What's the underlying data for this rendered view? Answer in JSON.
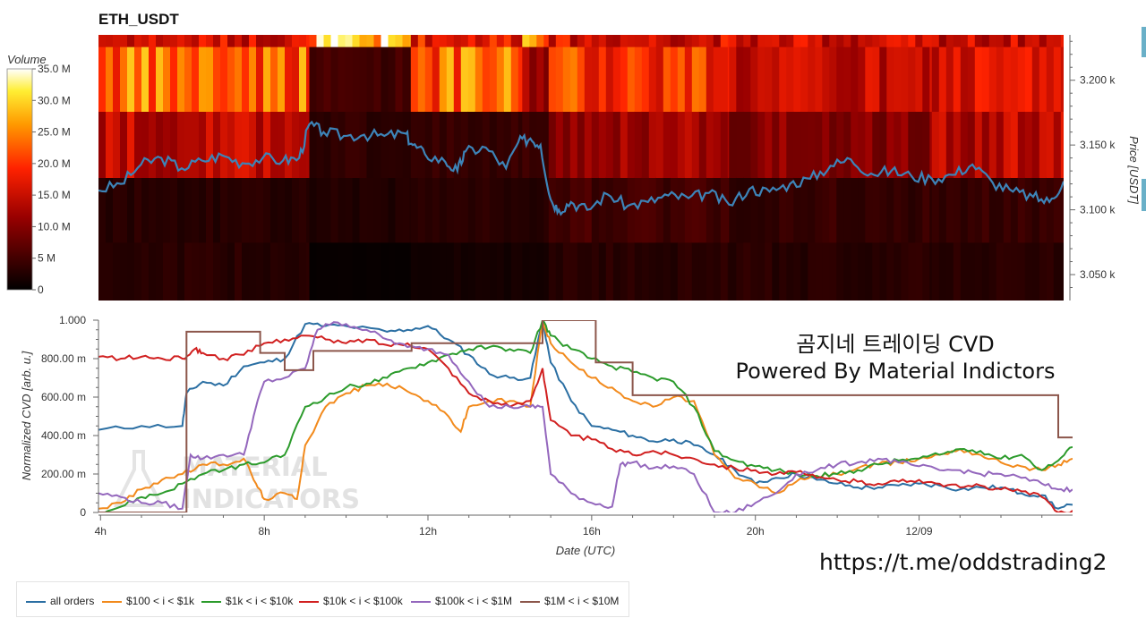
{
  "title": "ETH_USDT",
  "overlay_text": [
    "곰지네 트레이딩 CVD",
    "Powered By Material Indictors"
  ],
  "watermark": [
    "MATERIAL",
    "INDICATORS"
  ],
  "link": "https://t.me/oddstrading2",
  "colors": {
    "all orders": "#2b6fa3",
    "$100 < i < $1k": "#f28a1c",
    "$1k < i < $10k": "#2c9b2c",
    "$10k < i < $100k": "#d12020",
    "$100k < i < $1M": "#9467bd",
    "$1M < i < $10M": "#8c564b"
  },
  "chart_data": [
    {
      "type": "heatmap",
      "title": "ETH_USDT",
      "colorbar": {
        "label": "Volume",
        "ticks": [
          "0",
          "5 M",
          "10.0 M",
          "15.0 M",
          "20.0 M",
          "25.0 M",
          "30.0 M",
          "35.0 M"
        ],
        "range": [
          0,
          35
        ]
      },
      "y_axis": {
        "label": "Price [USDT]",
        "ticks": [
          3050,
          3100,
          3150,
          3200
        ],
        "tick_labels": [
          "3.050 k",
          "3.100 k",
          "3.150 k",
          "3.200 k"
        ],
        "range": [
          3030,
          3235
        ]
      },
      "price_bands": [
        3030,
        3075,
        3125,
        3176,
        3226,
        3235
      ],
      "x_range_hours": [
        3.95,
        27.75
      ],
      "time_blocks": [
        {
          "from": 3.95,
          "to": 9.15,
          "volumes": [
            3,
            3,
            14,
            23,
            16,
            2
          ]
        },
        {
          "from": 9.15,
          "to": 11.65,
          "volumes": [
            0.5,
            2.5,
            3.5,
            5,
            28,
            2
          ]
        },
        {
          "from": 11.65,
          "to": 14.4,
          "volumes": [
            1.5,
            3,
            4,
            23,
            18,
            2
          ]
        },
        {
          "from": 14.4,
          "to": 15.05,
          "volumes": [
            1.5,
            3,
            4,
            12,
            28,
            3
          ]
        },
        {
          "from": 15.05,
          "to": 19.5,
          "volumes": [
            3,
            5,
            12,
            20,
            16,
            2
          ]
        },
        {
          "from": 19.5,
          "to": 24.5,
          "volumes": [
            3,
            4,
            10,
            14,
            15,
            2
          ]
        },
        {
          "from": 24.5,
          "to": 27.75,
          "volumes": [
            3,
            4,
            14,
            16,
            15,
            2
          ]
        }
      ],
      "series": [
        {
          "name": "price",
          "x": [
            3.95,
            4.5,
            5,
            5.5,
            6,
            6.5,
            7,
            7.5,
            8,
            8.5,
            8.9,
            9.15,
            9.5,
            10,
            10.5,
            11,
            11.5,
            11.7,
            12,
            12.5,
            12.8,
            13,
            13.5,
            14,
            14.3,
            14.6,
            14.85,
            15.1,
            15.3,
            15.6,
            16,
            16.5,
            17,
            17.5,
            18,
            18.5,
            19,
            19.5,
            20,
            20.5,
            21,
            21.5,
            22,
            22.5,
            23,
            23.5,
            24,
            24.5,
            25,
            25.5,
            26,
            26.5,
            27,
            27.4,
            27.75
          ],
          "y": [
            3115,
            3120,
            3135,
            3140,
            3132,
            3138,
            3142,
            3136,
            3140,
            3138,
            3140,
            3166,
            3160,
            3157,
            3158,
            3157,
            3159,
            3150,
            3143,
            3137,
            3130,
            3145,
            3148,
            3132,
            3152,
            3155,
            3150,
            3108,
            3100,
            3106,
            3100,
            3112,
            3103,
            3106,
            3111,
            3109,
            3113,
            3104,
            3116,
            3114,
            3120,
            3124,
            3134,
            3139,
            3128,
            3130,
            3126,
            3124,
            3127,
            3135,
            3121,
            3114,
            3110,
            3106,
            3122
          ]
        }
      ]
    },
    {
      "type": "line",
      "title": "",
      "xlabel": "Date (UTC)",
      "ylabel": "Normalized CVD [arb. u.]",
      "ylim": [
        0,
        1
      ],
      "xlim": [
        3.95,
        27.75
      ],
      "x_tick_labels": [
        {
          "at": 4,
          "label": "4h"
        },
        {
          "at": 8,
          "label": "8h"
        },
        {
          "at": 12,
          "label": "12h"
        },
        {
          "at": 16,
          "label": "16h"
        },
        {
          "at": 20,
          "label": "20h"
        },
        {
          "at": 24,
          "label": "12/09"
        }
      ],
      "y_tick_labels": [
        {
          "at": 0,
          "label": "0"
        },
        {
          "at": 0.2,
          "label": "200.00 m"
        },
        {
          "at": 0.4,
          "label": "400.00 m"
        },
        {
          "at": 0.6,
          "label": "600.00 m"
        },
        {
          "at": 0.8,
          "label": "800.00 m"
        },
        {
          "at": 1,
          "label": "1.000"
        }
      ],
      "series": [
        {
          "name": "all orders",
          "x": [
            3.95,
            5,
            6,
            6.1,
            6.5,
            7,
            7.5,
            8,
            8.5,
            9,
            9.5,
            10,
            11,
            11.5,
            12,
            12.5,
            13,
            13.5,
            14,
            14.5,
            14.8,
            15,
            15.5,
            16,
            16.5,
            17,
            17.5,
            18,
            18.5,
            19,
            19.5,
            20,
            20.5,
            21,
            21.5,
            22,
            22.5,
            23,
            23.5,
            24,
            24.5,
            25,
            25.5,
            26,
            26.5,
            27,
            27.4,
            27.75
          ],
          "y": [
            0.43,
            0.45,
            0.45,
            0.62,
            0.68,
            0.66,
            0.76,
            0.78,
            0.8,
            0.98,
            0.97,
            0.97,
            0.94,
            0.95,
            0.97,
            0.9,
            0.82,
            0.72,
            0.7,
            0.7,
            1.0,
            0.78,
            0.58,
            0.45,
            0.43,
            0.4,
            0.37,
            0.38,
            0.35,
            0.3,
            0.22,
            0.15,
            0.18,
            0.2,
            0.17,
            0.15,
            0.13,
            0.13,
            0.14,
            0.15,
            0.14,
            0.12,
            0.13,
            0.13,
            0.1,
            0.09,
            0.02,
            0.04
          ]
        },
        {
          "name": "$100 < i < $1k",
          "x": [
            3.95,
            4.5,
            5,
            5.5,
            6,
            6.5,
            7,
            7.5,
            7.8,
            8,
            8.5,
            8.8,
            9,
            9.5,
            10,
            10.5,
            11,
            11.5,
            12,
            12.5,
            12.8,
            13,
            13.5,
            14,
            14.5,
            14.8,
            15,
            15.5,
            16,
            16.5,
            17,
            17.5,
            18,
            18.5,
            19,
            19.5,
            20,
            20.5,
            21,
            21.5,
            22,
            22.5,
            23,
            23.5,
            24,
            24.5,
            25,
            25.5,
            26,
            26.5,
            27,
            27.4,
            27.75
          ],
          "y": [
            0.02,
            0.05,
            0.12,
            0.17,
            0.2,
            0.25,
            0.25,
            0.28,
            0.15,
            0.07,
            0.1,
            0.07,
            0.35,
            0.55,
            0.62,
            0.66,
            0.67,
            0.63,
            0.58,
            0.5,
            0.42,
            0.55,
            0.58,
            0.58,
            0.55,
            1.0,
            0.88,
            0.78,
            0.7,
            0.65,
            0.58,
            0.55,
            0.6,
            0.58,
            0.3,
            0.18,
            0.15,
            0.1,
            0.16,
            0.19,
            0.2,
            0.23,
            0.25,
            0.26,
            0.28,
            0.3,
            0.33,
            0.3,
            0.26,
            0.24,
            0.22,
            0.25,
            0.28
          ]
        },
        {
          "name": "$1k < i < $10k",
          "x": [
            3.95,
            4.5,
            5,
            5.5,
            6,
            6.5,
            7,
            7.5,
            8,
            8.5,
            9,
            9.5,
            10,
            10.5,
            11,
            11.5,
            12,
            12.5,
            13,
            13.5,
            14,
            14.5,
            14.8,
            15,
            15.5,
            16,
            16.5,
            17,
            17.5,
            18,
            18.5,
            19,
            19.5,
            20,
            20.5,
            21,
            21.5,
            22,
            22.5,
            23,
            23.5,
            24,
            24.5,
            25,
            25.5,
            26,
            26.5,
            27,
            27.4,
            27.75
          ],
          "y": [
            0.0,
            0.03,
            0.08,
            0.1,
            0.15,
            0.2,
            0.22,
            0.25,
            0.26,
            0.3,
            0.55,
            0.6,
            0.65,
            0.67,
            0.7,
            0.75,
            0.78,
            0.82,
            0.85,
            0.86,
            0.85,
            0.83,
            1.0,
            0.92,
            0.85,
            0.8,
            0.76,
            0.73,
            0.7,
            0.68,
            0.55,
            0.32,
            0.27,
            0.24,
            0.22,
            0.2,
            0.19,
            0.2,
            0.22,
            0.25,
            0.27,
            0.28,
            0.3,
            0.33,
            0.32,
            0.28,
            0.3,
            0.22,
            0.27,
            0.34
          ]
        },
        {
          "name": "$10k < i < $100k",
          "x": [
            3.95,
            4.5,
            5,
            5.5,
            6,
            6.3,
            6.5,
            7,
            7.5,
            8,
            8.5,
            9,
            9.5,
            10,
            10.5,
            11,
            11.5,
            12,
            12.5,
            13,
            13.5,
            14,
            14.5,
            14.8,
            15,
            15.5,
            16,
            16.5,
            17,
            17.5,
            18,
            18.5,
            19,
            19.5,
            20,
            20.5,
            21,
            21.5,
            22,
            22.5,
            23,
            23.5,
            24,
            24.5,
            25,
            25.5,
            26,
            26.5,
            27,
            27.4,
            27.75
          ],
          "y": [
            0.81,
            0.8,
            0.81,
            0.8,
            0.8,
            0.85,
            0.83,
            0.8,
            0.82,
            0.88,
            0.9,
            0.92,
            0.9,
            0.88,
            0.9,
            0.87,
            0.88,
            0.85,
            0.75,
            0.62,
            0.58,
            0.55,
            0.58,
            0.75,
            0.48,
            0.4,
            0.38,
            0.33,
            0.3,
            0.32,
            0.3,
            0.28,
            0.25,
            0.23,
            0.22,
            0.2,
            0.21,
            0.18,
            0.17,
            0.16,
            0.15,
            0.16,
            0.17,
            0.15,
            0.13,
            0.14,
            0.12,
            0.11,
            0.08,
            0.0,
            0.01
          ]
        },
        {
          "name": "$100k < i < $1M",
          "x": [
            3.95,
            4.5,
            5,
            5.5,
            6,
            6.2,
            6.5,
            7,
            7.5,
            7.8,
            8,
            8.5,
            9,
            9.3,
            9.5,
            10,
            10.5,
            11,
            11.5,
            12,
            12.5,
            13,
            13.5,
            14,
            14.5,
            14.8,
            15,
            15.5,
            16,
            16.5,
            16.7,
            17,
            17.5,
            18,
            18.5,
            19,
            19.5,
            20,
            20.5,
            21,
            21.5,
            22,
            22.5,
            23,
            23.5,
            24,
            24.5,
            25,
            25.5,
            26,
            26.5,
            27,
            27.4,
            27.75
          ],
          "y": [
            0.1,
            0.08,
            0.05,
            0.05,
            0.02,
            0.3,
            0.28,
            0.3,
            0.3,
            0.55,
            0.68,
            0.7,
            0.75,
            0.95,
            0.98,
            0.98,
            0.95,
            0.9,
            0.86,
            0.85,
            0.82,
            0.68,
            0.55,
            0.55,
            0.55,
            0.55,
            0.2,
            0.1,
            0.05,
            0.03,
            0.25,
            0.26,
            0.23,
            0.24,
            0.2,
            0.0,
            0.0,
            0.05,
            0.1,
            0.2,
            0.22,
            0.25,
            0.26,
            0.28,
            0.26,
            0.24,
            0.22,
            0.22,
            0.2,
            0.2,
            0.18,
            0.15,
            0.12,
            0.12
          ]
        },
        {
          "name": "$1M < i < $10M",
          "x": [
            3.95,
            6.1,
            6.1,
            7.9,
            7.9,
            8.5,
            8.5,
            9.2,
            9.2,
            11.6,
            11.6,
            14.8,
            14.8,
            15.6,
            15.6,
            16.1,
            16.1,
            17.0,
            17.0,
            24.0,
            24.0,
            26.0,
            26.0,
            27.4,
            27.4,
            27.75
          ],
          "y": [
            0.0,
            0.0,
            0.94,
            0.94,
            0.83,
            0.83,
            0.74,
            0.74,
            0.84,
            0.84,
            0.88,
            0.88,
            1.0,
            1.0,
            1.0,
            1.0,
            0.78,
            0.78,
            0.61,
            0.61,
            0.61,
            0.61,
            0.61,
            0.61,
            0.39,
            0.39
          ]
        }
      ]
    }
  ]
}
